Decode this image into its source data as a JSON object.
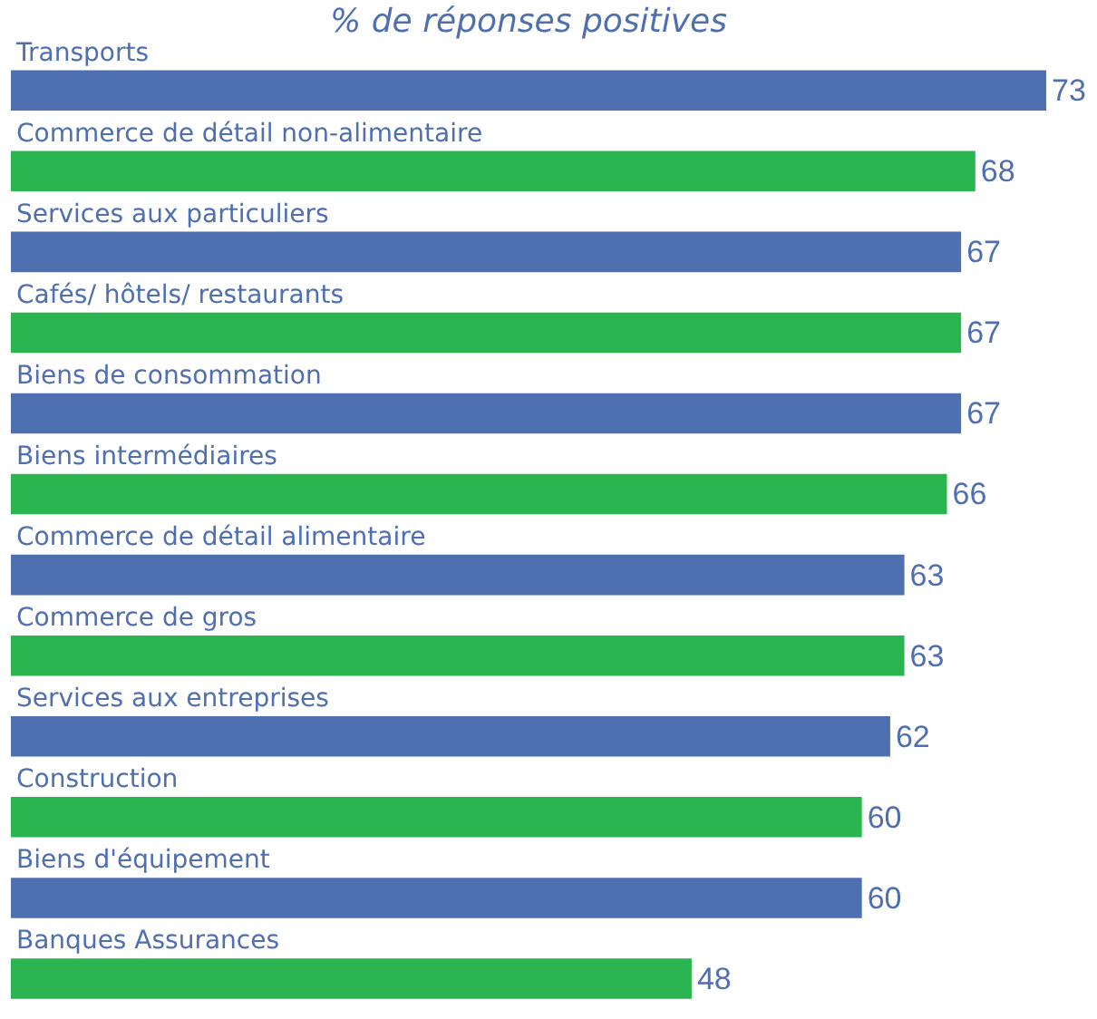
{
  "chart_data": {
    "type": "bar",
    "orientation": "horizontal",
    "title": "% de réponses positives",
    "categories": [
      "Transports",
      "Commerce de détail non-alimentaire",
      "Services aux particuliers",
      "Cafés/ hôtels/ restaurants",
      "Biens de consommation",
      "Biens intermédiaires",
      "Commerce de détail alimentaire",
      "Commerce de gros",
      "Services aux entreprises",
      "Construction",
      "Biens d'équipement",
      "Banques Assurances"
    ],
    "values": [
      73,
      68,
      67,
      67,
      67,
      66,
      63,
      63,
      62,
      60,
      60,
      48
    ],
    "colors": [
      "#4f70b0",
      "#2bb550",
      "#4f70b0",
      "#2bb550",
      "#4f70b0",
      "#2bb550",
      "#4f70b0",
      "#2bb550",
      "#4f70b0",
      "#2bb550",
      "#4f70b0",
      "#2bb550"
    ],
    "data_labels": true
  }
}
